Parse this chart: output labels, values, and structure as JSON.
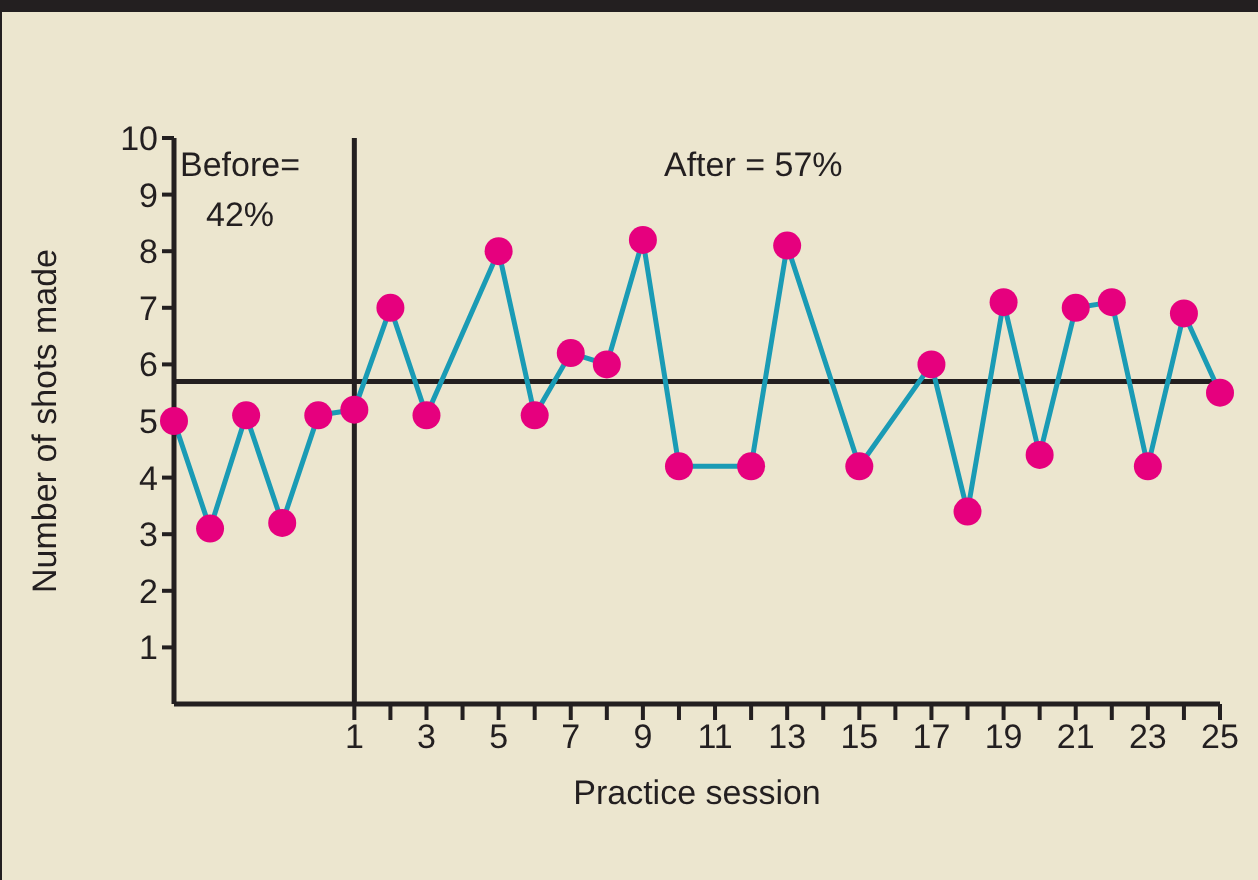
{
  "chart_data": {
    "type": "line",
    "xlabel": "Practice session",
    "ylabel": "Number of shots made",
    "x": [
      -4,
      -3,
      -2,
      -1,
      0,
      1,
      2,
      3,
      5,
      6,
      7,
      8,
      9,
      10,
      12,
      13,
      15,
      17,
      18,
      19,
      20,
      21,
      22,
      23,
      24,
      25
    ],
    "series": [
      {
        "color": "#1a9bb5",
        "values": [
          5.0,
          3.1,
          5.1,
          3.2,
          5.1,
          5.2,
          7.0,
          5.1,
          8.0,
          5.1,
          6.2,
          6.0,
          8.2,
          4.2,
          4.2,
          8.1,
          4.2,
          6.0,
          3.4,
          7.1,
          4.4,
          7.0,
          7.1,
          4.2,
          6.9,
          5.5
        ],
        "colors": [
          "#e6007e",
          "#e6007e",
          "#e6007e",
          "#e6007e",
          "#e6007e",
          "#e6007e",
          "#e6007e",
          "#e6007e",
          "#e6007e",
          "#e6007e",
          "#e6007e",
          "#e6007e",
          "#e6007e",
          "#e6007e",
          "#e6007e",
          "#e6007e",
          "#e6007e",
          "#e6007e",
          "#e6007e",
          "#e6007e",
          "#e6007e",
          "#e6007e",
          "#e6007e",
          "#e6007e",
          "#e6007e",
          "#e6007e"
        ]
      }
    ],
    "marker": "circle",
    "xlim": [
      -4,
      25
    ],
    "xticks": [
      1,
      {
        "value": 2,
        "label": null
      },
      3,
      {
        "value": 4,
        "label": null
      },
      5,
      {
        "value": 6,
        "label": null
      },
      7,
      {
        "value": 8,
        "label": null
      },
      9,
      {
        "value": 10,
        "label": null
      },
      11,
      {
        "value": 12,
        "label": null
      },
      13,
      {
        "value": 14,
        "label": null
      },
      15,
      {
        "value": 16,
        "label": null
      },
      17,
      {
        "value": 18,
        "label": null
      },
      19,
      {
        "value": 20,
        "label": null
      },
      21,
      {
        "value": 22,
        "label": null
      },
      23,
      {
        "value": 24,
        "label": null
      },
      25
    ],
    "ylim": [
      0,
      10
    ],
    "yticks": [
      1,
      2,
      3,
      4,
      5,
      6,
      7,
      8,
      9,
      10
    ],
    "ref_lines": [
      {
        "axis": "x",
        "value": 1,
        "color": "#231f20"
      },
      {
        "axis": "y",
        "value": 5.7,
        "color": "#231f20"
      }
    ],
    "annotations": [
      "Before=\n42%",
      "After = 57%"
    ],
    "grid": false
  }
}
